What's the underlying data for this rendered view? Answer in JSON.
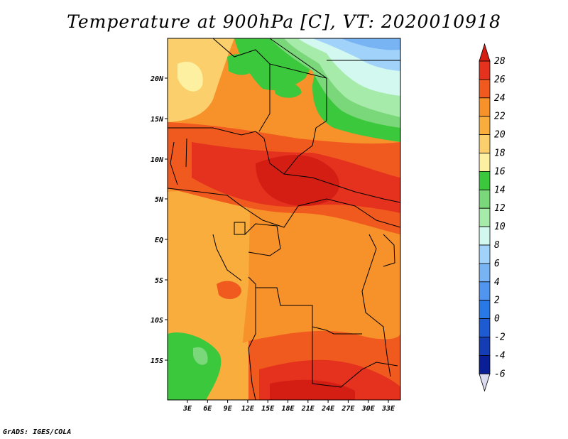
{
  "title": "Temperature at 900hPa [C], VT: 2020010918",
  "footer": "GrADS: IGES/COLA",
  "map": {
    "region": "Central Africa",
    "lat_labels": [
      "20N",
      "15N",
      "10N",
      "5N",
      "EQ",
      "5S",
      "10S",
      "15S"
    ],
    "lon_labels": [
      "3E",
      "6E",
      "9E",
      "12E",
      "15E",
      "18E",
      "21E",
      "24E",
      "27E",
      "30E",
      "33E"
    ]
  },
  "colorbar": {
    "labels": [
      "28",
      "26",
      "24",
      "22",
      "20",
      "18",
      "16",
      "14",
      "12",
      "10",
      "8",
      "6",
      "4",
      "2",
      "0",
      "-2",
      "-4",
      "-6"
    ],
    "colors": {
      "c_above28": "#d41e14",
      "c26_28": "#e4321e",
      "c24_26": "#f05a1e",
      "c22_24": "#f7912a",
      "c20_22": "#f9ad3c",
      "c18_20": "#fbd06c",
      "c16_18": "#fdf0a0",
      "c14_16": "#3cc83c",
      "c12_14": "#7ad87a",
      "c10_12": "#a6ebaa",
      "c8_10": "#d2f8f0",
      "c6_8": "#a0d2fa",
      "c4_6": "#78b4f4",
      "c2_4": "#5096f0",
      "c0_2": "#2878e6",
      "cm2_0": "#1e5ad2",
      "cm4_m2": "#143cb4",
      "cm6_m4": "#0a1e96",
      "c_below_m6": "#0a0a6e"
    }
  }
}
